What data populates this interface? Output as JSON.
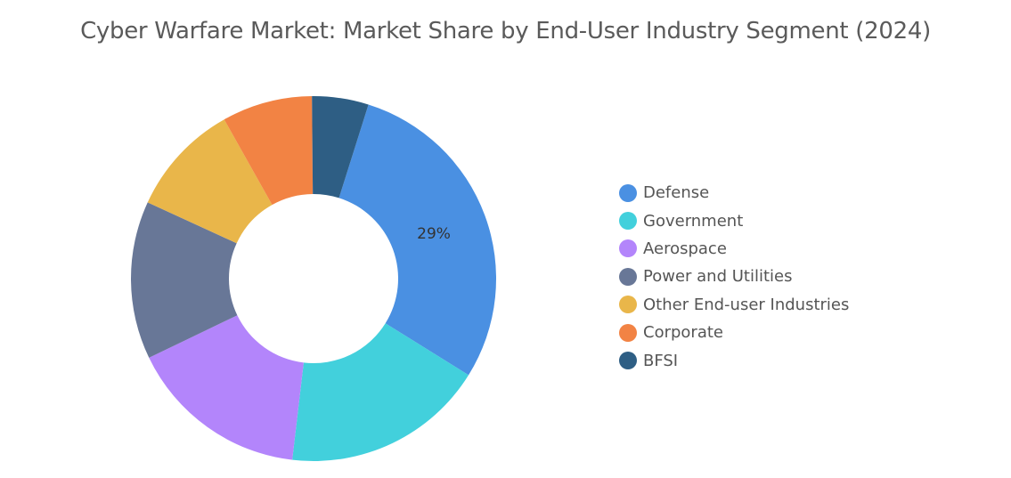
{
  "chart_data": {
    "type": "pie",
    "style": "donut",
    "title": "Cyber Warfare Market: Market Share by End-User Industry Segment (2024)",
    "legend_position": "right",
    "slices": [
      {
        "name": "Defense",
        "value": 29,
        "label": "29%",
        "color": "#4a90e2"
      },
      {
        "name": "Government",
        "value": 18,
        "label": "",
        "color": "#42d0dc"
      },
      {
        "name": "Aerospace",
        "value": 16,
        "label": "",
        "color": "#b385fb"
      },
      {
        "name": "Power and Utilities",
        "value": 14,
        "label": "",
        "color": "#687797"
      },
      {
        "name": "Other End-user Industries",
        "value": 10,
        "label": "",
        "color": "#e9b64a"
      },
      {
        "name": "Corporate",
        "value": 8,
        "label": "",
        "color": "#f28344"
      },
      {
        "name": "BFSI",
        "value": 5,
        "label": "",
        "color": "#2e5e84"
      }
    ]
  }
}
